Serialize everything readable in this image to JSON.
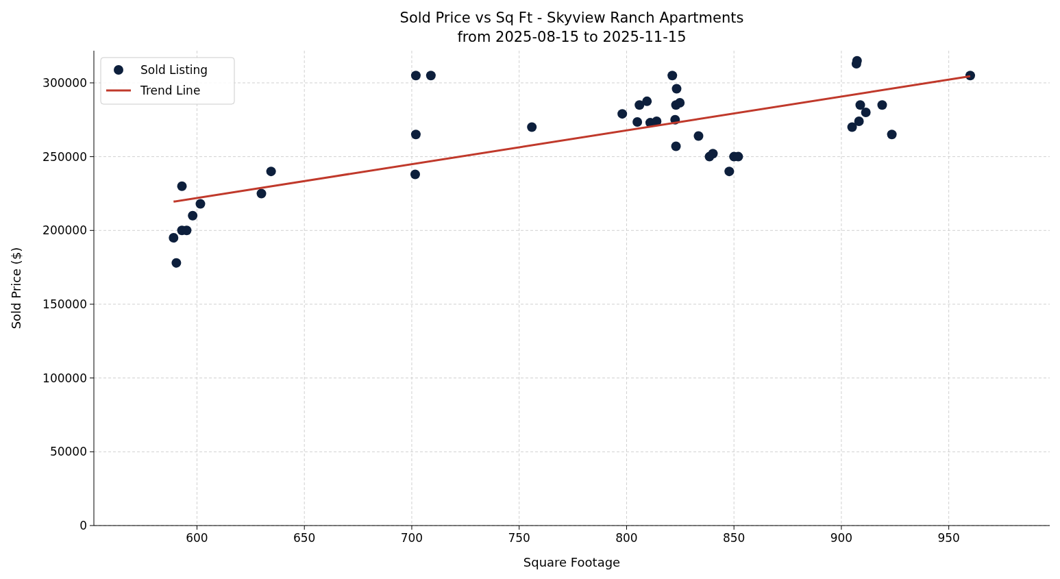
{
  "chart_data": {
    "type": "scatter",
    "title": "Sold Price vs Sq Ft - Skyview Ranch Apartments\nfrom 2025-08-15 to 2025-11-15",
    "xlabel": "Square Footage",
    "ylabel": "Sold Price ($)",
    "xlim": [
      552,
      997
    ],
    "xticks": [
      600,
      650,
      700,
      750,
      800,
      850,
      900,
      950
    ],
    "ylim": [
      0,
      321800
    ],
    "yticks": [
      0,
      50000,
      100000,
      150000,
      200000,
      250000,
      300000
    ],
    "grid": true,
    "legend": "top left",
    "series": [
      {
        "name": "Sold Listing",
        "color": "#0d1f3c",
        "marker": "circle",
        "x": [
          589.1,
          590.4,
          593,
          593,
          595.2,
          598,
          601.6,
          630,
          634.5,
          701.9,
          701.9,
          701.6,
          708.9,
          755.9,
          798,
          805,
          806,
          809.5,
          811,
          814,
          821.3,
          823.3,
          823,
          824.8,
          822.6,
          823,
          833.5,
          838.6,
          840.2,
          847.8,
          850,
          852,
          905,
          907,
          907.3,
          908.8,
          908.2,
          911.4,
          919,
          923.5,
          960
        ],
        "values": [
          195000,
          178000,
          230000,
          200000,
          200000,
          210000,
          218000,
          225000,
          240000,
          305000,
          265000,
          238000,
          305000,
          270000,
          279000,
          273500,
          285000,
          287500,
          273000,
          274000,
          305000,
          296000,
          285000,
          286500,
          275000,
          257000,
          264000,
          250000,
          252000,
          240000,
          250000,
          250000,
          270000,
          313000,
          315000,
          285000,
          274000,
          280000,
          285000,
          265000,
          305000
        ]
      },
      {
        "name": "Trend Line",
        "type": "line",
        "color": "#c0392b",
        "line_style": "solid",
        "marker": "none",
        "x": [
          589.1,
          960
        ],
        "values": [
          219500,
          304500
        ]
      }
    ]
  }
}
